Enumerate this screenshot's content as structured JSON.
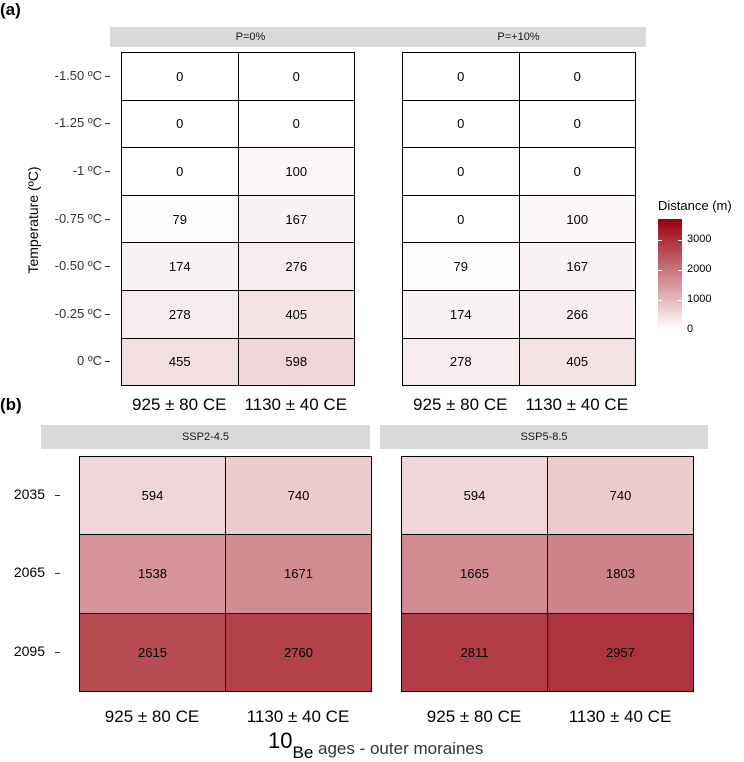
{
  "chart_data": [
    {
      "type": "heatmap",
      "panel": "(a)",
      "ylabel": "Temperature (ºC)",
      "y_categories": [
        "-1.50 ºC",
        "-1.25 ºC",
        "-1 ºC",
        "-0.75 ºC",
        "-0.50 ºC",
        "-0.25 ºC",
        "0 ºC"
      ],
      "x_categories": [
        "925 ± 80 CE",
        "1130 ± 40 CE"
      ],
      "facets": [
        {
          "name": "P=0%",
          "values": [
            [
              0,
              0
            ],
            [
              0,
              0
            ],
            [
              0,
              100
            ],
            [
              79,
              167
            ],
            [
              174,
              276
            ],
            [
              278,
              405
            ],
            [
              455,
              598
            ]
          ]
        },
        {
          "name": "P=+10%",
          "values": [
            [
              0,
              0
            ],
            [
              0,
              0
            ],
            [
              0,
              0
            ],
            [
              0,
              100
            ],
            [
              79,
              167
            ],
            [
              174,
              266
            ],
            [
              278,
              405
            ]
          ]
        }
      ],
      "legend": {
        "title": "Distance (m)",
        "ticks": [
          0,
          1000,
          2000,
          3000
        ],
        "range": [
          0,
          3700
        ],
        "colors": [
          "#ffffff",
          "#99000d"
        ],
        "placement": "right"
      }
    },
    {
      "type": "heatmap",
      "panel": "(b)",
      "y_categories": [
        "2035",
        "2065",
        "2095"
      ],
      "x_categories": [
        "925 ± 80 CE",
        "1130 ± 40 CE"
      ],
      "facets": [
        {
          "name": "SSP2-4.5",
          "values": [
            [
              594,
              740
            ],
            [
              1538,
              1671
            ],
            [
              2615,
              2760
            ]
          ]
        },
        {
          "name": "SSP5-8.5",
          "values": [
            [
              594,
              740
            ],
            [
              1665,
              1803
            ],
            [
              2811,
              2957
            ]
          ]
        }
      ],
      "xlabel_sup": "10",
      "xlabel_sub": "Be",
      "xlabel_rest": " ages - outer moraines"
    }
  ]
}
